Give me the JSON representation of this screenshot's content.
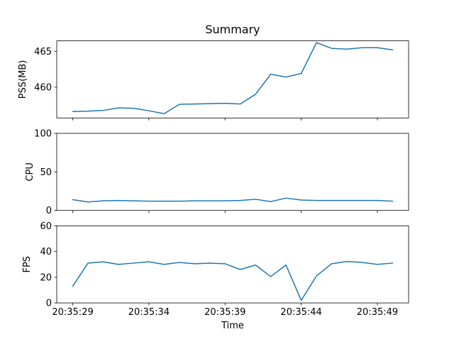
{
  "chart_data": {
    "type": "line",
    "title": "Summary",
    "xlabel": "Time",
    "line_color": "#1f77b4",
    "background_color": "#ffffff",
    "grid": false,
    "legend": "none",
    "x_tick_labels": [
      "20:35:29",
      "20:35:34",
      "20:35:39",
      "20:35:44",
      "20:35:49"
    ],
    "x_tick_offsets": [
      0,
      5,
      10,
      15,
      20
    ],
    "xlim": [
      -1.05,
      22.05
    ],
    "x_offsets_seconds": [
      0,
      1,
      2,
      3,
      4,
      5,
      6,
      7,
      8,
      9,
      10,
      11,
      12,
      13,
      14,
      15,
      16,
      17,
      18,
      19,
      20,
      21
    ],
    "panels": [
      {
        "ylabel": "PSS(MB)",
        "ylim": [
          455.7,
          466.45
        ],
        "yticks": [
          460,
          465
        ],
        "values": [
          456.6,
          456.65,
          456.75,
          457.1,
          457.05,
          456.7,
          456.3,
          457.6,
          457.65,
          457.7,
          457.75,
          457.65,
          459.0,
          461.8,
          461.4,
          461.9,
          466.2,
          465.4,
          465.3,
          465.5,
          465.5,
          465.2
        ]
      },
      {
        "ylabel": "CPU",
        "ylim": [
          0,
          100
        ],
        "yticks": [
          0,
          50,
          100
        ],
        "values": [
          14,
          11,
          12.5,
          13,
          12.5,
          12,
          12,
          12,
          12.5,
          12.5,
          12.5,
          13,
          14.5,
          11.5,
          16,
          13.5,
          13,
          13,
          13,
          13,
          13,
          12
        ]
      },
      {
        "ylabel": "FPS",
        "ylim": [
          0,
          60
        ],
        "yticks": [
          0,
          20,
          40,
          60
        ],
        "values": [
          13,
          31,
          32,
          30,
          31,
          32,
          30,
          31.5,
          30.5,
          31,
          30.5,
          26,
          29.5,
          20.5,
          29.5,
          2,
          21,
          30.5,
          32.3,
          31.5,
          30,
          31
        ]
      }
    ]
  }
}
